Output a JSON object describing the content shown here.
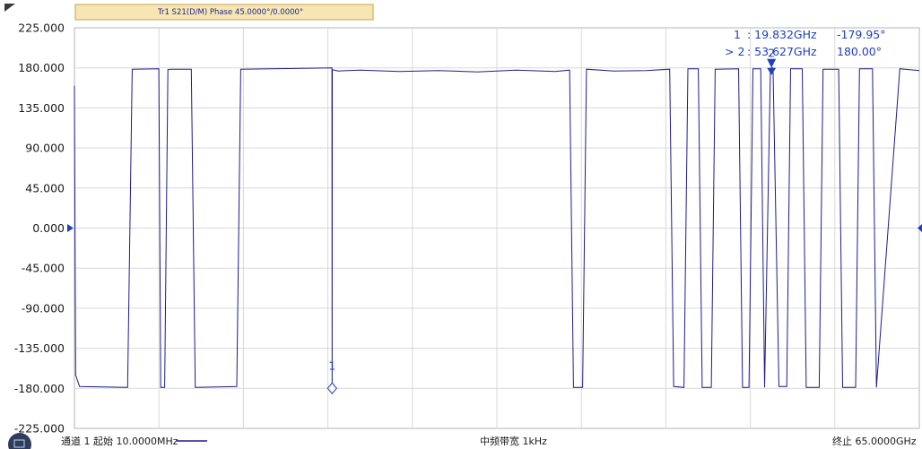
{
  "trace_label": "Tr1 S21(D/M) Phase 45.0000°/0.0000°",
  "colors": {
    "trace": "#1c1c8c",
    "marker": "#1f3fc0",
    "label_bg": "#f7e6b4",
    "label_border": "#c9a24a",
    "grid": "#d9d9d9"
  },
  "markers": [
    {
      "prefix": "1",
      "freq": ": 19.832GHz",
      "value": "-179.95°",
      "marker_label": "1",
      "x_ghz": 19.832,
      "y_deg": -179.95
    },
    {
      "prefix": "> 2",
      "freq": ": 53.627GHz",
      "value": "180.00°",
      "marker_label": "2",
      "x_ghz": 53.627,
      "y_deg": 180.0
    }
  ],
  "footer": {
    "start": "通道 1 起始 10.0000MHz",
    "ifbw": "中频带宽 1kHz",
    "stop": "终止 65.0000GHz"
  },
  "chart_data": {
    "type": "line",
    "title": "Tr1 S21(D/M) Phase 45.0000°/0.0000°",
    "xlim": [
      0.01,
      65.0
    ],
    "ylim": [
      -225,
      225
    ],
    "y_ticks": [
      "225.000",
      "180.000",
      "135.000",
      "90.000",
      "45.000",
      "0.000",
      "-45.000",
      "-90.000",
      "-135.000",
      "-180.000",
      "-225.000"
    ],
    "grid": true,
    "reference_level": 0.0,
    "series": [
      {
        "x": [
          0.01,
          0.1,
          0.4,
          4.1,
          4.45,
          6.5,
          6.65,
          6.95,
          7.2,
          7.4,
          9.0,
          9.3,
          12.5,
          12.8,
          19.82,
          19.832,
          19.845,
          20.3,
          22.0,
          25.0,
          28.0,
          31.0,
          34.0,
          37.0,
          38.1,
          38.4,
          39.1,
          39.4,
          41.5,
          44.0,
          45.8,
          46.1,
          46.9,
          47.2,
          48.0,
          48.3,
          49.0,
          49.3,
          51.1,
          51.4,
          51.9,
          52.2,
          52.8,
          53.1,
          53.55,
          53.627,
          53.75,
          54.2,
          54.8,
          55.1,
          56.0,
          56.3,
          57.3,
          57.6,
          58.8,
          59.1,
          60.1,
          60.4,
          61.4,
          61.7,
          63.5,
          65.0
        ],
        "y": [
          160.0,
          -165.0,
          -178.0,
          -179.0,
          178.5,
          179.0,
          -179.0,
          -179.0,
          178.0,
          178.5,
          178.5,
          -179.0,
          -178.0,
          178.5,
          180.0,
          -179.95,
          178.0,
          176.5,
          177.5,
          176.0,
          177.0,
          175.5,
          177.5,
          176.0,
          177.5,
          -179.0,
          -179.0,
          178.5,
          176.5,
          177.0,
          178.5,
          -178.0,
          -179.0,
          179.0,
          179.0,
          -179.0,
          -179.0,
          178.5,
          179.0,
          -179.0,
          -179.0,
          179.0,
          179.0,
          -179.0,
          179.0,
          180.0,
          180.0,
          -178.0,
          -178.0,
          179.0,
          179.0,
          -179.0,
          -179.0,
          178.5,
          178.5,
          -179.0,
          -179.0,
          179.0,
          179.0,
          -179.0,
          179.0,
          177.0
        ]
      }
    ]
  }
}
